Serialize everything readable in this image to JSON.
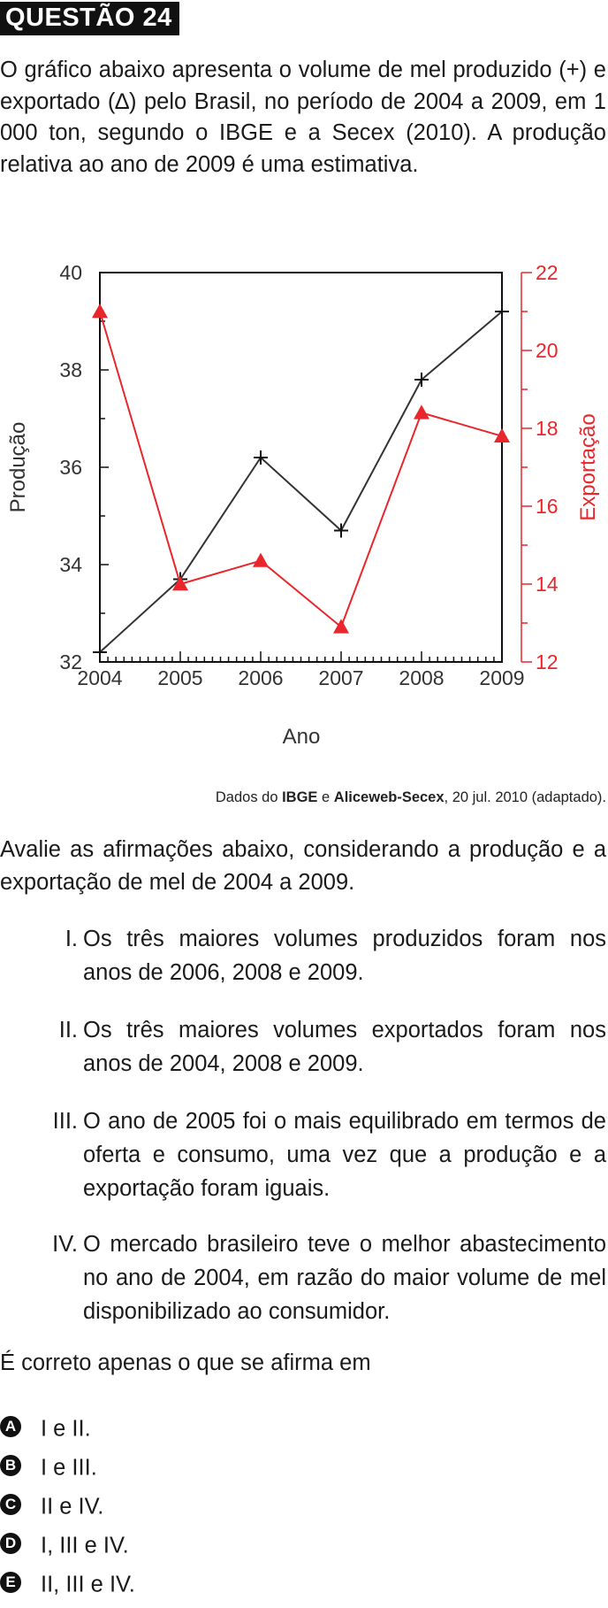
{
  "question": {
    "title": "QUESTÃO 24",
    "intro": "O gráfico abaixo apresenta o volume de mel produzido (+) e exportado (∆) pelo Brasil, no período de 2004 a 2009, em 1 000 ton, segundo o IBGE e a Secex (2010). A produção relativa ao ano de 2009 é uma estimativa.",
    "source_prefix": "Dados do ",
    "source_b1": "IBGE",
    "source_mid": " e ",
    "source_b2": "Aliceweb-Secex",
    "source_suffix": ", 20 jul. 2010 (adaptado).",
    "prompt": "Avalie as afirmações abaixo, considerando a produção e a exportação de mel de 2004 a 2009.",
    "statements": [
      {
        "num": "I.",
        "text": "Os três maiores volumes produzidos foram nos anos de 2006, 2008 e 2009."
      },
      {
        "num": "II.",
        "text": "Os três maiores volumes exportados foram nos anos de 2004, 2008 e 2009."
      },
      {
        "num": "III.",
        "text": "O ano de 2005 foi o mais equilibrado em termos de oferta e consumo, uma vez que a produção e a exportação foram iguais."
      },
      {
        "num": "IV.",
        "text": "O mercado brasileiro teve o melhor abastecimento no ano de 2004, em razão do maior volume de mel disponibilizado ao consumidor."
      }
    ],
    "ask": "É correto apenas o que se afirma em",
    "options": [
      {
        "letter": "A",
        "text": "I e II."
      },
      {
        "letter": "B",
        "text": "I e III."
      },
      {
        "letter": "C",
        "text": "II e IV."
      },
      {
        "letter": "D",
        "text": "I, III e IV."
      },
      {
        "letter": "E",
        "text": "II, III e IV."
      }
    ]
  },
  "chart_data": {
    "type": "line",
    "x": [
      2004,
      2005,
      2006,
      2007,
      2008,
      2009
    ],
    "xlabel": "Ano",
    "ylabel": "Produção",
    "y2label": "Exportação",
    "ylim": [
      32,
      40
    ],
    "y2lim": [
      12,
      22
    ],
    "yticks": [
      "32",
      "34",
      "36",
      "38",
      "40"
    ],
    "y2ticks": [
      "12",
      "14",
      "16",
      "18",
      "20",
      "22"
    ],
    "xticks": [
      "2004",
      "2005",
      "2006",
      "2007",
      "2008",
      "2009"
    ],
    "series": [
      {
        "name": "Produção",
        "axis": "left",
        "marker": "+",
        "color": "#333333",
        "values": [
          32.2,
          33.7,
          36.2,
          34.7,
          37.8,
          39.2
        ]
      },
      {
        "name": "Exportação",
        "axis": "right",
        "marker": "triangle",
        "color": "#e8262b",
        "values": [
          21.0,
          14.0,
          14.6,
          12.9,
          18.4,
          17.8
        ]
      }
    ],
    "grid": false,
    "colors": {
      "left_axis": "#333333",
      "right_axis": "#e8262b"
    }
  }
}
